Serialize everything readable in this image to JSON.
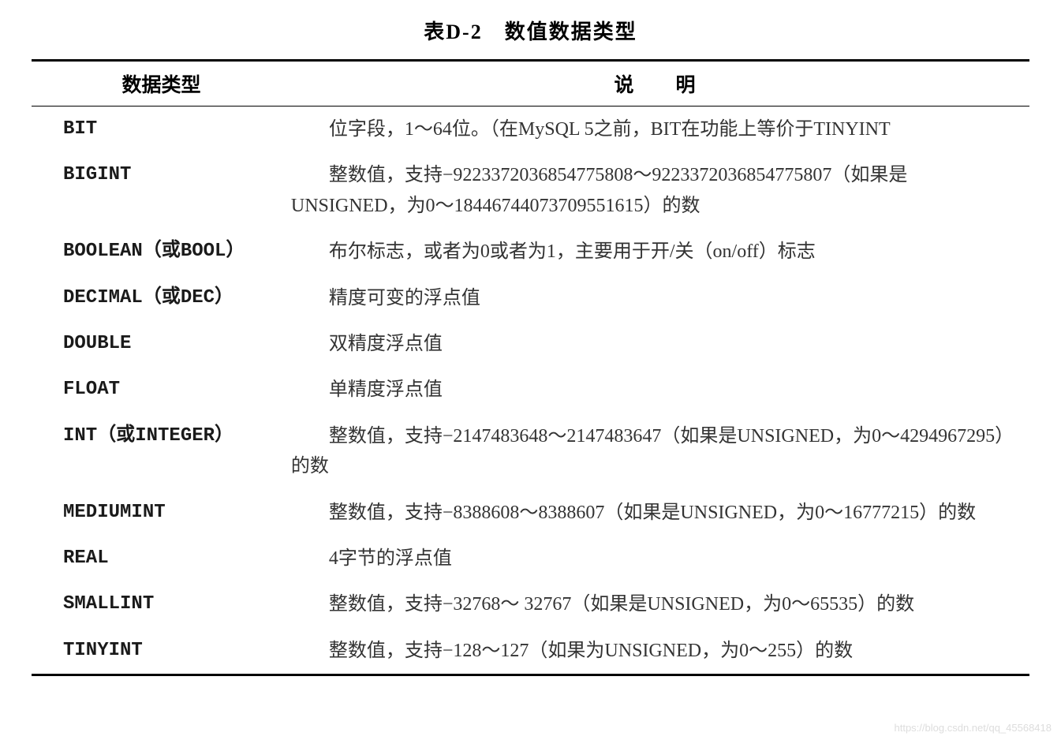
{
  "table": {
    "title": "表D-2　数值数据类型",
    "columns": [
      "数据类型",
      "说　明"
    ],
    "rows": [
      {
        "type": "BIT",
        "desc": "位字段，1～64位。（在MySQL 5之前，BIT在功能上等价于TINYINT"
      },
      {
        "type": "BIGINT",
        "desc": "整数值，支持−922337203685477580​8～922337203685477580​7（如果是UNSIGNED，为0～1844​6744073709551615）的数"
      },
      {
        "type": "BOOLEAN（或BOOL）",
        "desc": "布尔标志，或者为0或者为1，主要用于开/关（on/off）标志"
      },
      {
        "type": "DECIMAL（或DEC）",
        "desc": "精度可变的浮点值"
      },
      {
        "type": "DOUBLE",
        "desc": "双精度浮点值"
      },
      {
        "type": "FLOAT",
        "desc": "单精度浮点值"
      },
      {
        "type": "INT（或INTEGER）",
        "desc": "整数值，支持−2147483648～2147483647（如果是UNSIGNED，为0～4294967295）的数"
      },
      {
        "type": "MEDIUMINT",
        "desc": "整数值，支持−8388608～8388607（如果是UNSIGNED，为0～16777215）的数"
      },
      {
        "type": "REAL",
        "desc": "4字节的浮点值"
      },
      {
        "type": "SMALLINT",
        "desc": "整数值，支持−32768～ 32767（如果是UNSIGNED，为0～65535）的数"
      },
      {
        "type": "TINYINT",
        "desc": "整数值，支持−128～127（如果为UNSIGNED，为0～255）的数"
      }
    ],
    "style": {
      "border_color": "#000000",
      "border_top_width": 3,
      "border_bottom_width": 3,
      "header_border_width": 1.5,
      "title_fontsize": 26,
      "header_fontsize": 25,
      "cell_fontsize": 24,
      "text_color": "#333333",
      "type_font": "Consolas",
      "background_color": "#ffffff"
    }
  },
  "watermark": "https://blog.csdn.net/qq_45568418"
}
